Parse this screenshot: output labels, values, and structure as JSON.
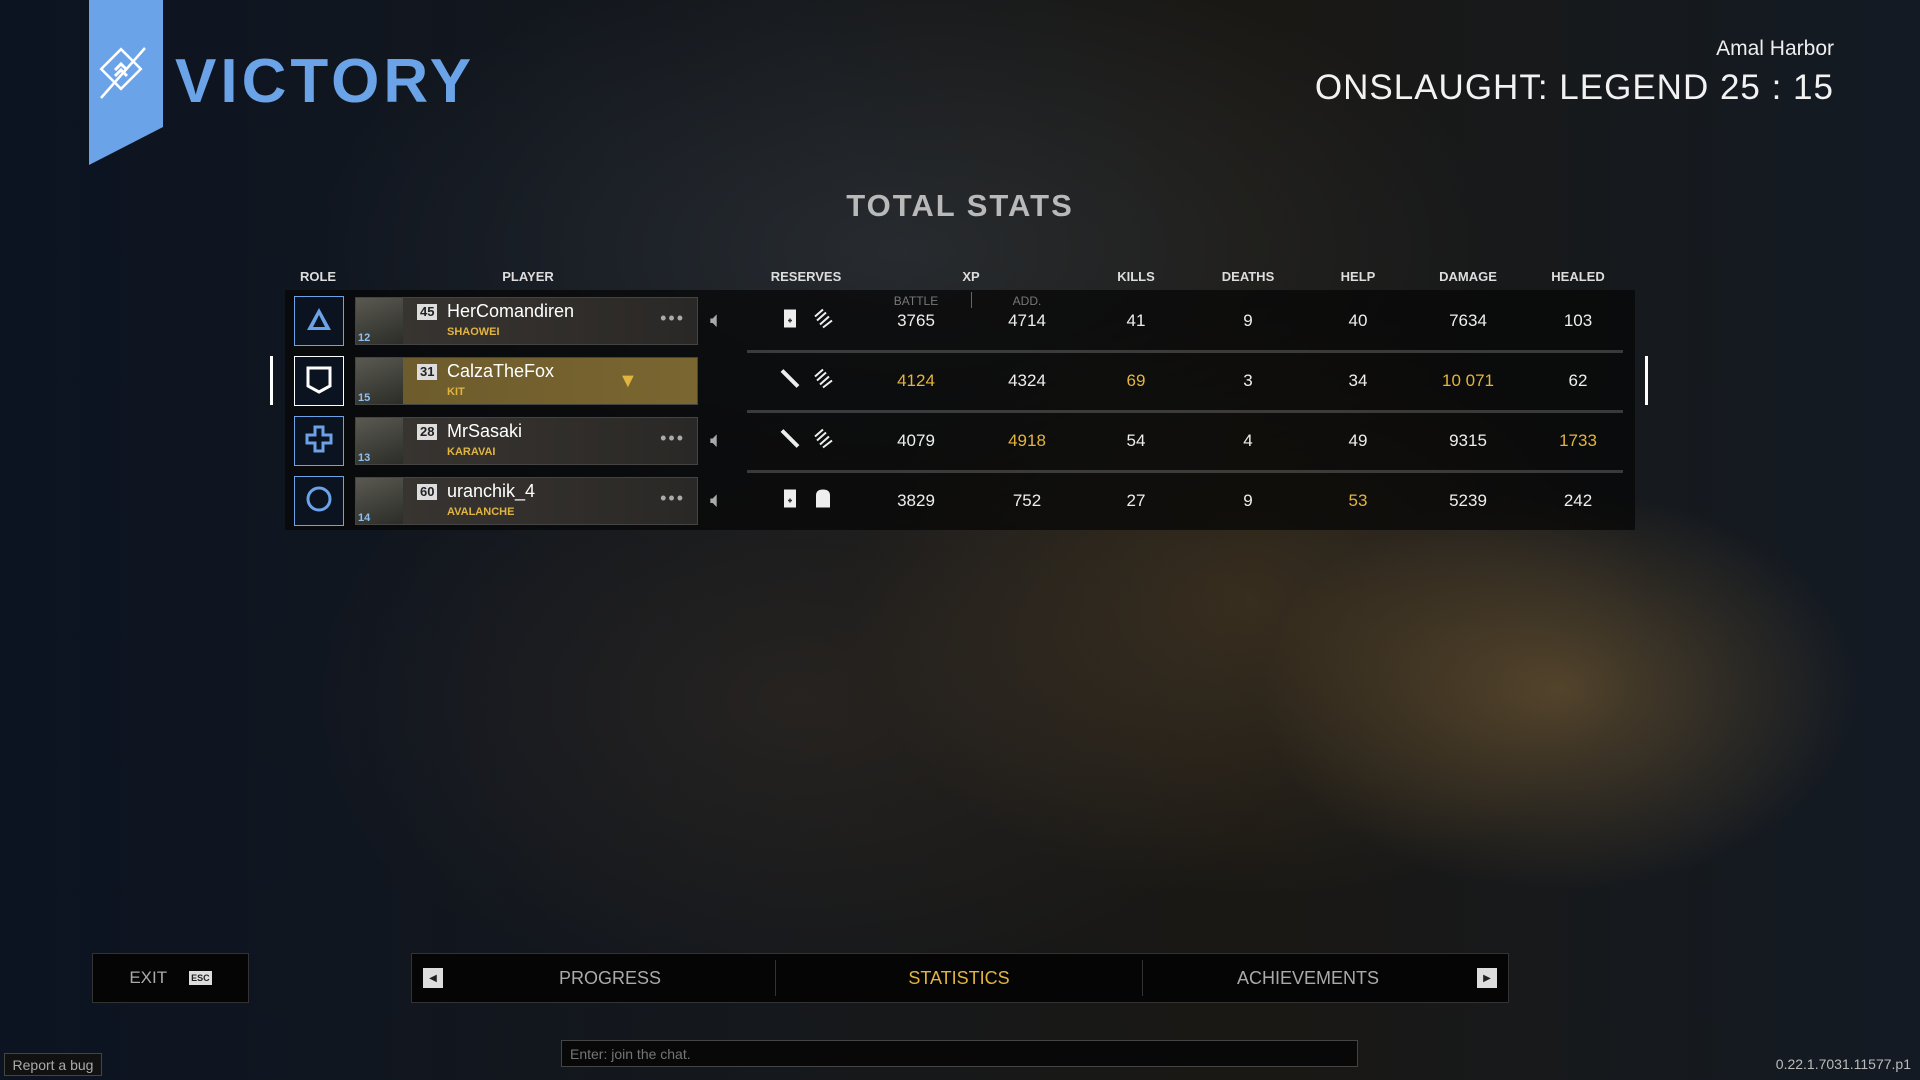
{
  "header": {
    "result": "VICTORY",
    "map": "Amal Harbor",
    "mode": "ONSLAUGHT: LEGEND",
    "time": "25 : 15",
    "accent": "#6aa3e8",
    "highlight": "#e2b440"
  },
  "title": "TOTAL STATS",
  "columns": {
    "role": "ROLE",
    "player": "PLAYER",
    "reserves": "RESERVES",
    "xp": "XP",
    "battle": "BATTLE",
    "add": "ADD.",
    "kills": "KILLS",
    "deaths": "DEATHS",
    "help": "HELP",
    "damage": "DAMAGE",
    "healed": "HEALED"
  },
  "rows": [
    {
      "role_icon": "triangle-icon",
      "rank": "12",
      "level": "45",
      "name": "HerComandiren",
      "tag": "SHAOWEI",
      "reserves": [
        "medkit-icon",
        "ammo-icon"
      ],
      "battle": "3765",
      "add": "4714",
      "kills": "41",
      "deaths": "9",
      "help": "40",
      "damage": "7634",
      "healed": "103",
      "highlight": []
    },
    {
      "role_icon": "shield-icon",
      "rank": "15",
      "level": "31",
      "name": "CalzaTheFox",
      "tag": "KIT",
      "self": true,
      "reserves": [
        "knife-icon",
        "ammo-icon"
      ],
      "battle": "4124",
      "add": "4324",
      "kills": "69",
      "deaths": "3",
      "help": "34",
      "damage": "10 071",
      "healed": "62",
      "highlight": [
        "battle",
        "kills",
        "damage"
      ]
    },
    {
      "role_icon": "cross-icon",
      "rank": "13",
      "level": "28",
      "name": "MrSasaki",
      "tag": "KARAVAI",
      "reserves": [
        "knife-icon",
        "ammo-icon"
      ],
      "battle": "4079",
      "add": "4918",
      "kills": "54",
      "deaths": "4",
      "help": "49",
      "damage": "9315",
      "healed": "1733",
      "highlight": [
        "add",
        "healed"
      ]
    },
    {
      "role_icon": "circle-icon",
      "rank": "14",
      "level": "60",
      "name": "uranchik_4",
      "tag": "AVALANCHE",
      "reserves": [
        "medkit-icon",
        "armor-icon"
      ],
      "battle": "3829",
      "add": "752",
      "kills": "27",
      "deaths": "9",
      "help": "53",
      "damage": "5239",
      "healed": "242",
      "highlight": [
        "help"
      ]
    }
  ],
  "footer": {
    "exit": "EXIT",
    "exit_key": "ESC",
    "tabs": [
      "PROGRESS",
      "STATISTICS",
      "ACHIEVEMENTS"
    ],
    "active_tab": "STATISTICS",
    "chat_placeholder": "Enter: join the chat.",
    "report": "Report a bug",
    "version": "0.22.1.7031.11577.p1"
  }
}
